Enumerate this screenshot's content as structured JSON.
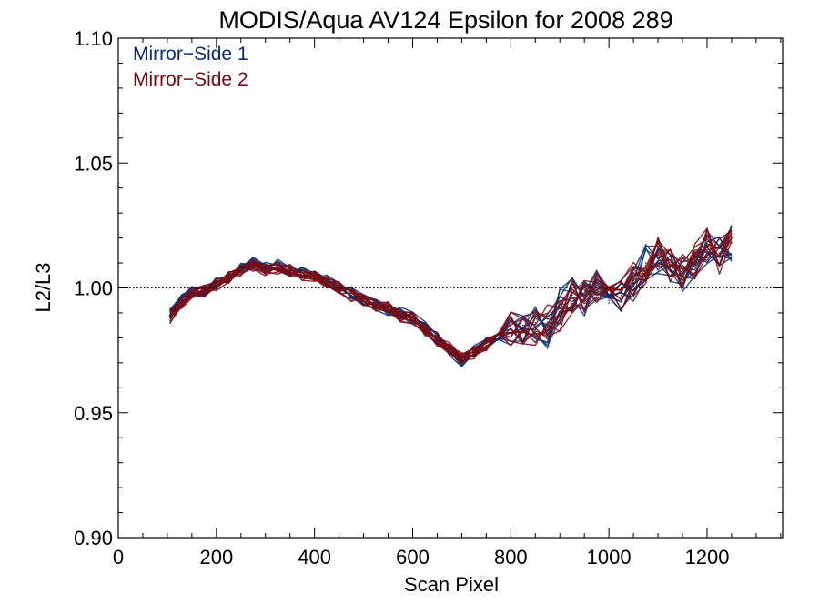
{
  "chart_data": {
    "type": "line",
    "title": "MODIS/Aqua AV124 Epsilon for 2008 289",
    "xlabel": "Scan Pixel",
    "ylabel": "L2/L3",
    "xlim": [
      0,
      1354
    ],
    "ylim": [
      0.9,
      1.1
    ],
    "x_ticks": [
      0,
      200,
      400,
      600,
      800,
      1000,
      1200
    ],
    "x_tick_labels": [
      "0",
      "200",
      "400",
      "600",
      "800",
      "1000",
      "1200"
    ],
    "y_ticks": [
      0.9,
      0.95,
      1.0,
      1.05,
      1.1
    ],
    "y_tick_labels": [
      "0.90",
      "0.95",
      "1.00",
      "1.05",
      "1.10"
    ],
    "reference_line": 1.0,
    "grid": false,
    "legend_position": "top-left",
    "series": [
      {
        "name": "Mirror−Side 1",
        "color": "#0b2b6b",
        "x": [
          105,
          130,
          150,
          175,
          200,
          225,
          250,
          275,
          300,
          325,
          350,
          375,
          400,
          425,
          450,
          475,
          500,
          525,
          550,
          575,
          600,
          625,
          650,
          675,
          700,
          725,
          750,
          775,
          800,
          825,
          850,
          875,
          900,
          925,
          950,
          975,
          1000,
          1025,
          1050,
          1075,
          1100,
          1125,
          1150,
          1175,
          1200,
          1225,
          1250
        ],
        "values": [
          0.989,
          0.995,
          0.999,
          0.998,
          1.002,
          1.004,
          1.008,
          1.01,
          1.008,
          1.009,
          1.007,
          1.006,
          1.005,
          1.003,
          1.0,
          0.998,
          0.995,
          0.993,
          0.991,
          0.99,
          0.988,
          0.984,
          0.98,
          0.975,
          0.971,
          0.975,
          0.978,
          0.98,
          0.984,
          0.982,
          0.986,
          0.983,
          0.992,
          0.998,
          0.995,
          1.0,
          0.994,
          0.997,
          1.002,
          1.01,
          1.012,
          1.008,
          1.006,
          1.01,
          1.016,
          1.014,
          1.018
        ]
      },
      {
        "name": "Mirror−Side 2",
        "color": "#7a0a12",
        "x": [
          105,
          130,
          150,
          175,
          200,
          225,
          250,
          275,
          300,
          325,
          350,
          375,
          400,
          425,
          450,
          475,
          500,
          525,
          550,
          575,
          600,
          625,
          650,
          675,
          700,
          725,
          750,
          775,
          800,
          825,
          850,
          875,
          900,
          925,
          950,
          975,
          1000,
          1025,
          1050,
          1075,
          1100,
          1125,
          1150,
          1175,
          1200,
          1225,
          1250
        ],
        "values": [
          0.988,
          0.994,
          0.998,
          0.999,
          1.001,
          1.004,
          1.007,
          1.009,
          1.007,
          1.008,
          1.007,
          1.005,
          1.005,
          1.002,
          1.0,
          0.997,
          0.995,
          0.993,
          0.992,
          0.989,
          0.988,
          0.983,
          0.979,
          0.976,
          0.972,
          0.974,
          0.977,
          0.981,
          0.983,
          0.985,
          0.984,
          0.986,
          0.99,
          0.997,
          0.996,
          0.999,
          0.995,
          0.998,
          1.003,
          1.009,
          1.013,
          1.009,
          1.007,
          1.011,
          1.017,
          1.013,
          1.02
        ]
      }
    ]
  }
}
